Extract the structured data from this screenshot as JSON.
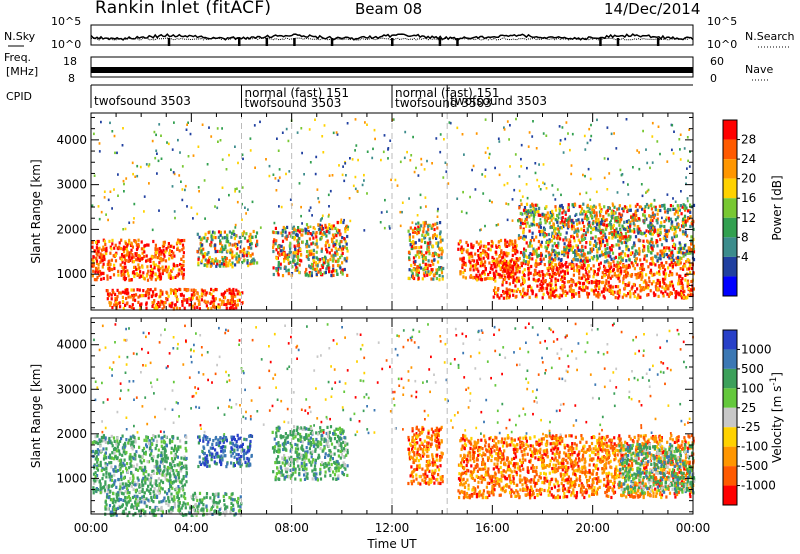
{
  "header": {
    "title": "Rankin Inlet (fitACF)",
    "beam": "Beam 08",
    "date": "14/Dec/2014"
  },
  "chart_data": [
    {
      "type": "line",
      "name": "noise-panel",
      "left_label": "N.Sky",
      "right_label": "N.Search",
      "left_ticks": [
        "10^5",
        "10^0"
      ],
      "right_ticks": [
        "10^5",
        "10^0"
      ],
      "yscale": "log",
      "ylim": [
        1,
        100000
      ],
      "x_hours": [
        0,
        24
      ]
    },
    {
      "type": "line",
      "name": "freq-panel",
      "left_label": "Freq.",
      "left_unit": "[MHz]",
      "right_label": "Nave",
      "left_ticks": [
        "18",
        "8"
      ],
      "right_ticks": [
        "60",
        "0"
      ],
      "ylim": [
        8,
        18
      ],
      "x_hours": [
        0,
        24
      ]
    },
    {
      "type": "table",
      "name": "cpid-panel",
      "label": "CPID",
      "segments": [
        {
          "start_hour": 0.0,
          "end_hour": 6.0,
          "text": "twofsound 3503"
        },
        {
          "start_hour": 6.0,
          "end_hour": 12.0,
          "text": "normal (fast) 151",
          "text2": "twofsound 3503"
        },
        {
          "start_hour": 12.0,
          "end_hour": 14.2,
          "text": "normal (fast) 151",
          "text2": "twofsound 3503"
        },
        {
          "start_hour": 14.2,
          "end_hour": 24.0,
          "text": "twofsound 3503"
        }
      ]
    },
    {
      "type": "heatmap",
      "name": "power-panel",
      "ylabel": "Slant Range [km]",
      "ylim": [
        200,
        4600
      ],
      "y_ticks": [
        1000,
        2000,
        3000,
        4000
      ],
      "colorbar_label": "Power [dB]",
      "colorbar_ticks": [
        "28",
        "24",
        "20",
        "16",
        "12",
        "8",
        "4"
      ],
      "colorbar_colors": [
        "#ff0000",
        "#ff5a00",
        "#ff9600",
        "#ffd200",
        "#78c832",
        "#32a050",
        "#3c8c8c",
        "#2040a0",
        "#0000ff"
      ],
      "regions": [
        {
          "start_hour": 0.0,
          "end_hour": 3.7,
          "range_min_km": 900,
          "range_max_km": 1800,
          "level": "high"
        },
        {
          "start_hour": 0.5,
          "end_hour": 6.0,
          "range_min_km": 250,
          "range_max_km": 700,
          "level": "high"
        },
        {
          "start_hour": 4.2,
          "end_hour": 6.6,
          "range_min_km": 1200,
          "range_max_km": 2000,
          "level": "mid"
        },
        {
          "start_hour": 7.2,
          "end_hour": 8.4,
          "range_min_km": 1000,
          "range_max_km": 2100,
          "level": "mid"
        },
        {
          "start_hour": 8.5,
          "end_hour": 10.2,
          "range_min_km": 1000,
          "range_max_km": 2200,
          "level": "mid"
        },
        {
          "start_hour": 12.6,
          "end_hour": 14.0,
          "range_min_km": 900,
          "range_max_km": 2200,
          "level": "mid"
        },
        {
          "start_hour": 14.6,
          "end_hour": 17.0,
          "range_min_km": 900,
          "range_max_km": 1800,
          "level": "high"
        },
        {
          "start_hour": 16.0,
          "end_hour": 24.0,
          "range_min_km": 500,
          "range_max_km": 1300,
          "level": "high"
        },
        {
          "start_hour": 17.0,
          "end_hour": 24.0,
          "range_min_km": 1300,
          "range_max_km": 2600,
          "level": "mid"
        }
      ]
    },
    {
      "type": "heatmap",
      "name": "velocity-panel",
      "ylabel": "Slant Range [km]",
      "xlabel": "Time UT",
      "x_ticks": [
        "00:00",
        "04:00",
        "08:00",
        "12:00",
        "16:00",
        "20:00",
        "00:00"
      ],
      "ylim": [
        200,
        4600
      ],
      "y_ticks": [
        1000,
        2000,
        3000,
        4000
      ],
      "colorbar_label": "Velocity [m s",
      "colorbar_label_sup": "-1",
      "colorbar_label_end": "]",
      "colorbar_ticks": [
        "1000",
        "500",
        "100",
        "25",
        "-25",
        "-100",
        "-500",
        "-1000"
      ],
      "colorbar_colors": [
        "#2840c8",
        "#3c78b4",
        "#3ca05a",
        "#64c83c",
        "#c8c8c8",
        "#ffd200",
        "#ff9600",
        "#ff5a00",
        "#ff0000"
      ],
      "regions": [
        {
          "start_hour": 0.0,
          "end_hour": 3.8,
          "range_min_km": 700,
          "range_max_km": 2000,
          "level": "positive"
        },
        {
          "start_hour": 0.5,
          "end_hour": 6.0,
          "range_min_km": 200,
          "range_max_km": 700,
          "level": "positive"
        },
        {
          "start_hour": 4.2,
          "end_hour": 6.4,
          "range_min_km": 1300,
          "range_max_km": 2000,
          "level": "strong-positive"
        },
        {
          "start_hour": 7.2,
          "end_hour": 10.2,
          "range_min_km": 1000,
          "range_max_km": 2200,
          "level": "positive"
        },
        {
          "start_hour": 12.6,
          "end_hour": 14.0,
          "range_min_km": 900,
          "range_max_km": 2200,
          "level": "negative"
        },
        {
          "start_hour": 14.6,
          "end_hour": 24.0,
          "range_min_km": 600,
          "range_max_km": 2000,
          "level": "negative"
        },
        {
          "start_hour": 21.0,
          "end_hour": 24.0,
          "range_min_km": 700,
          "range_max_km": 1800,
          "level": "positive"
        }
      ]
    }
  ]
}
